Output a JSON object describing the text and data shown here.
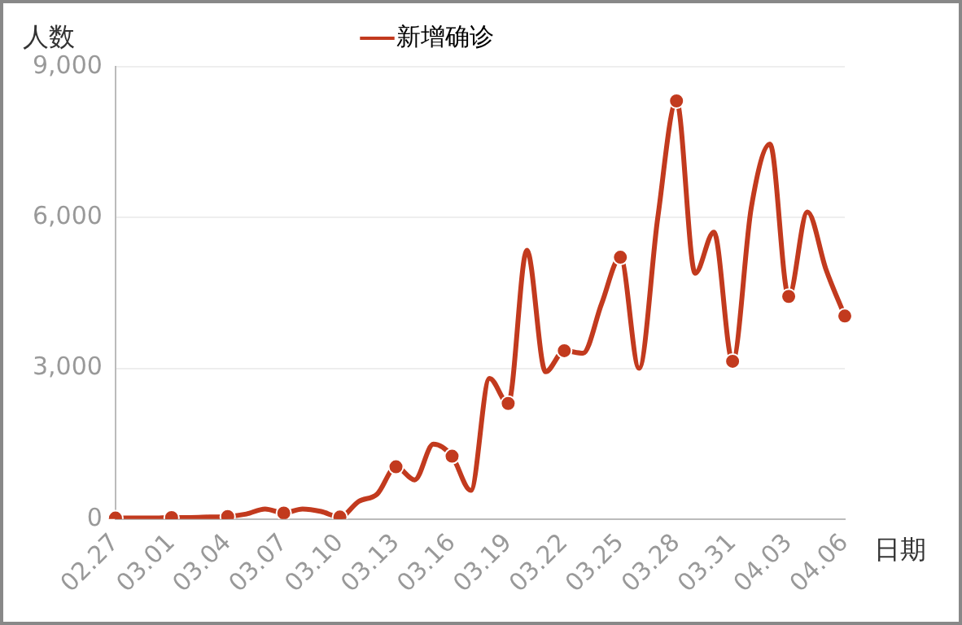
{
  "chart_data": {
    "type": "line",
    "xlabel": "日期",
    "ylabel": "人数",
    "legend": "top",
    "categories": [
      "02.27",
      null,
      null,
      "03.01",
      null,
      null,
      "03.04",
      null,
      null,
      "03.07",
      null,
      null,
      "03.10",
      null,
      null,
      "03.13",
      null,
      null,
      "03.16",
      null,
      null,
      "03.19",
      null,
      null,
      "03.22",
      null,
      null,
      "03.25",
      null,
      null,
      "03.28",
      null,
      null,
      "03.31",
      null,
      null,
      "04.03",
      null,
      null,
      "04.06"
    ],
    "series": [
      {
        "name": "新增确诊",
        "color": "#c23a1e",
        "values": [
          20,
          20,
          20,
          30,
          30,
          40,
          50,
          100,
          200,
          120,
          200,
          150,
          40,
          350,
          500,
          1040,
          780,
          1490,
          1250,
          570,
          2800,
          2300,
          5350,
          2930,
          3350,
          3300,
          4290,
          5210,
          3000,
          6000,
          8320,
          4890,
          5710,
          3140,
          6200,
          7460,
          4430,
          6110,
          4960,
          4040
        ]
      }
    ],
    "ylim": [
      0,
      9000
    ],
    "yticks": [
      0,
      {
        "value": 3000,
        "label": "3,000"
      },
      {
        "value": 6000,
        "label": "6,000"
      },
      {
        "value": 9000,
        "label": "9,000"
      }
    ],
    "grid": "y",
    "line_style": "solid"
  }
}
